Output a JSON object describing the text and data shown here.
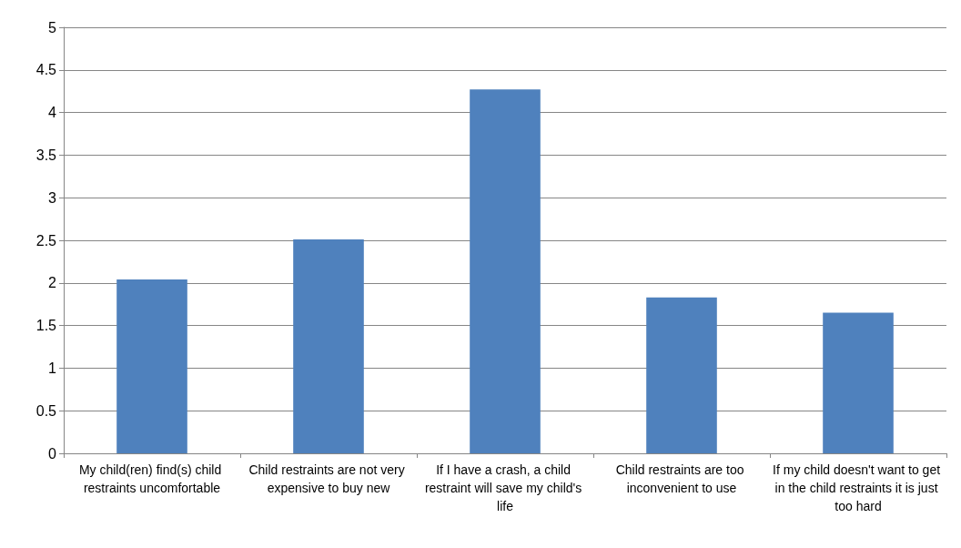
{
  "chart_data": {
    "type": "bar",
    "categories": [
      "My child(ren) find(s) child restraints uncomfortable",
      "Child restraints are not very expensive to buy new",
      "If I have a crash, a child restraint will save my child's life",
      "Child restraints are too inconvenient to use",
      "If my child doesn't want to get in the child restraints it is just too hard"
    ],
    "values": [
      2.04,
      2.51,
      4.27,
      1.83,
      1.65
    ],
    "color": "#4f81bd",
    "ylim": [
      0,
      5
    ],
    "yticks": [
      0,
      0.5,
      1,
      1.5,
      2,
      2.5,
      3,
      3.5,
      4,
      4.5,
      5
    ],
    "grid": "y"
  }
}
